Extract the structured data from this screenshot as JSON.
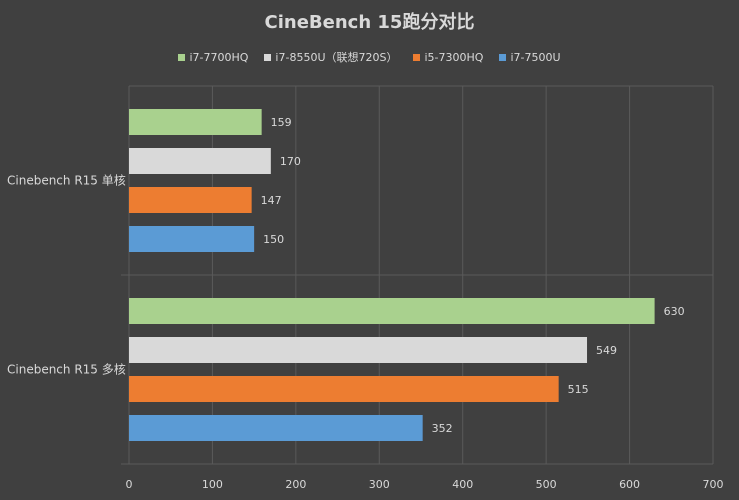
{
  "chart_data": {
    "type": "bar",
    "orientation": "horizontal",
    "title": "CineBench 15跑分对比",
    "categories": [
      "Cinebench R15 单核",
      "Cinebench R15 多核"
    ],
    "series": [
      {
        "name": "i7-7700HQ",
        "color": "#a9d18e",
        "values": [
          159,
          630
        ]
      },
      {
        "name": "i7-8550U（联想720S）",
        "color": "#d9d9d9",
        "values": [
          170,
          549
        ]
      },
      {
        "name": "i5-7300HQ",
        "color": "#ed7d31",
        "values": [
          147,
          515
        ]
      },
      {
        "name": "i7-7500U",
        "color": "#5b9bd5",
        "values": [
          150,
          352
        ]
      }
    ],
    "xlim": [
      0,
      700
    ],
    "xticks": [
      "0",
      "100",
      "200",
      "300",
      "400",
      "500",
      "600",
      "700"
    ],
    "grid": true,
    "legend_position": "top"
  },
  "colors": {
    "background": "#404040",
    "grid": "#5a5a5a",
    "text": "#d9d9d9"
  }
}
